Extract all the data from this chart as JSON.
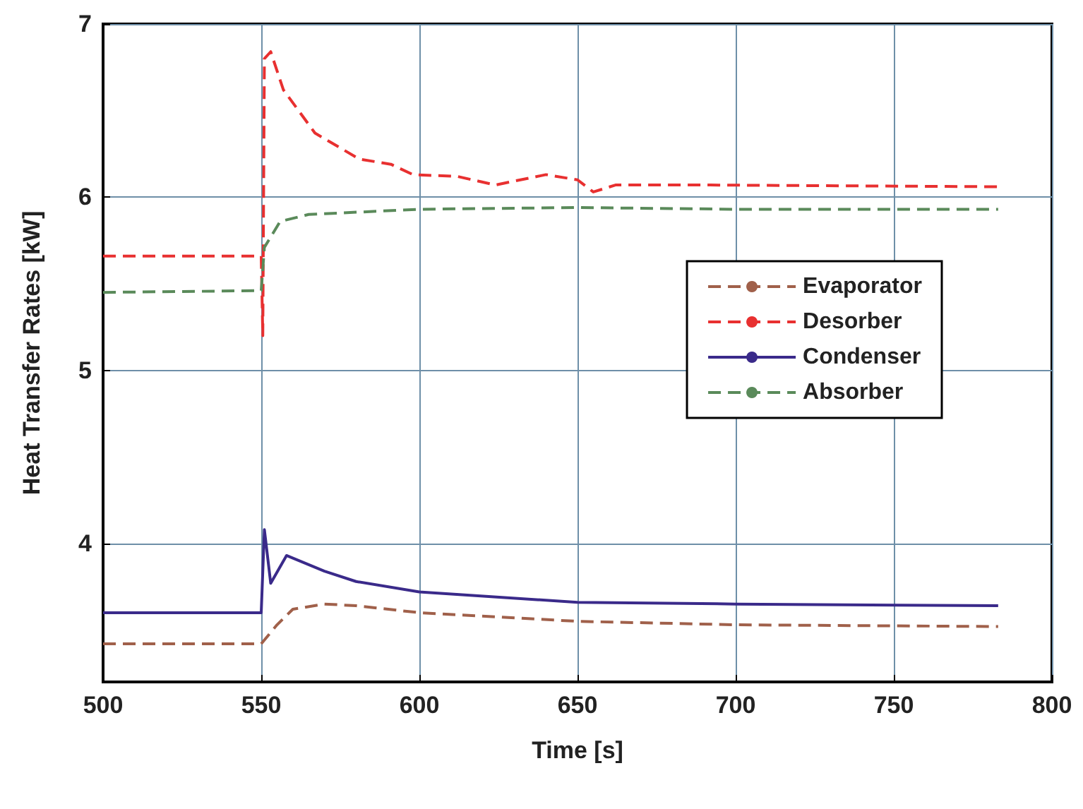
{
  "chart_data": {
    "type": "line",
    "xlabel": "Time [s]",
    "ylabel": "Heat Transfer Rates [kW]",
    "xlim": [
      500,
      800
    ],
    "xticks": [
      500,
      550,
      600,
      650,
      700,
      750,
      800
    ],
    "ylim": [
      3.2,
      7
    ],
    "yticks": [
      4,
      5,
      6,
      7
    ],
    "grid": true,
    "legend": "right",
    "marker": "none",
    "series": [
      {
        "name": "Evaporator",
        "color": "#a0604a",
        "line_style": "dashed",
        "x": [
          500,
          550,
          555,
          560,
          570,
          580,
          600,
          650,
          700,
          783
        ],
        "values": [
          3.42,
          3.42,
          3.53,
          3.62,
          3.65,
          3.64,
          3.6,
          3.55,
          3.53,
          3.52
        ]
      },
      {
        "name": "Desorber",
        "color": "#e83030",
        "line_style": "dashed",
        "x": [
          500,
          550,
          550.5,
          551,
          553,
          557,
          567,
          581,
          591,
          598,
          612,
          624,
          640,
          650,
          655,
          662,
          692,
          783
        ],
        "values": [
          5.66,
          5.66,
          5.2,
          6.8,
          6.84,
          6.62,
          6.37,
          6.22,
          6.19,
          6.13,
          6.12,
          6.07,
          6.13,
          6.1,
          6.03,
          6.07,
          6.07,
          6.06
        ]
      },
      {
        "name": "Condenser",
        "color": "#3a2a8a",
        "line_style": "solid",
        "x": [
          500,
          550,
          551,
          553,
          558,
          570,
          580,
          600,
          650,
          700,
          783
        ],
        "values": [
          3.6,
          3.6,
          4.08,
          3.77,
          3.93,
          3.84,
          3.78,
          3.72,
          3.66,
          3.65,
          3.64
        ]
      },
      {
        "name": "Absorber",
        "color": "#5a8a5a",
        "line_style": "dashed",
        "x": [
          500,
          550,
          551,
          556,
          565,
          600,
          650,
          700,
          783
        ],
        "values": [
          5.45,
          5.46,
          5.71,
          5.86,
          5.9,
          5.93,
          5.94,
          5.93,
          5.93
        ]
      }
    ]
  }
}
